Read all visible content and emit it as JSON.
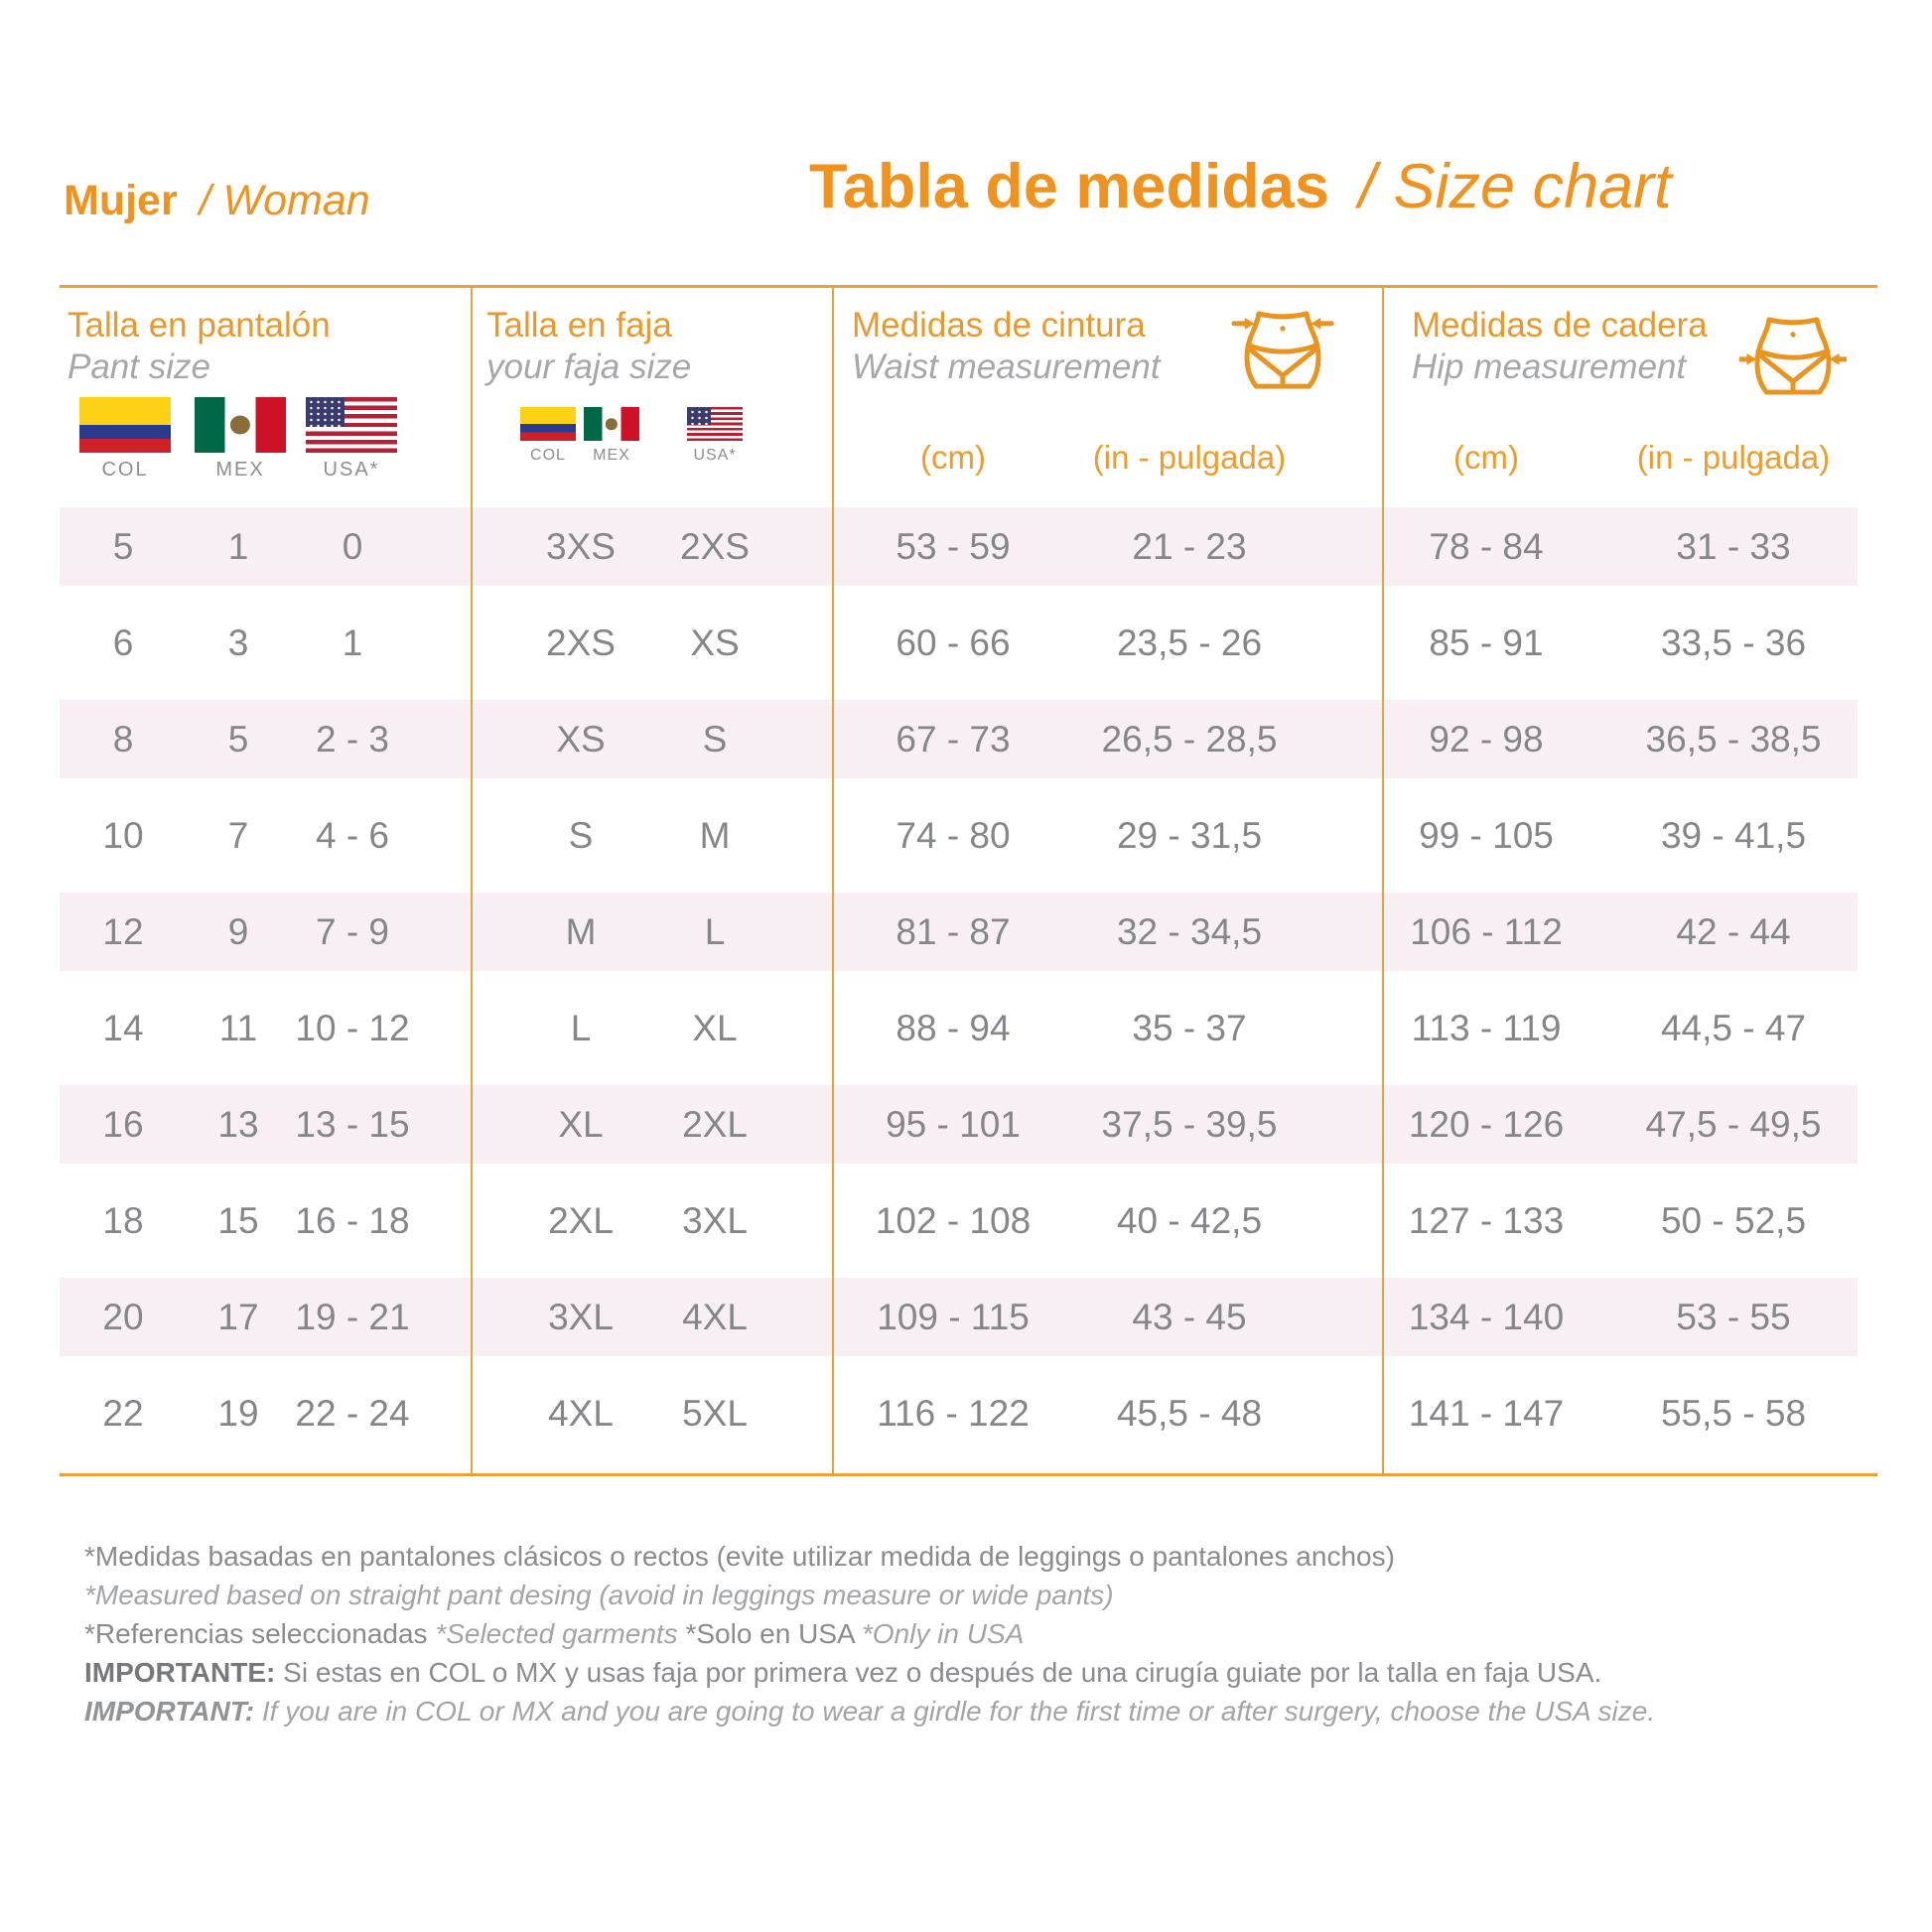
{
  "header": {
    "left_bold": "Mujer",
    "left_italic": "/ Woman",
    "main_bold": "Tabla de medidas",
    "main_italic": "/ Size chart"
  },
  "columns": [
    {
      "title_es": "Talla en pantalón",
      "title_en": "Pant size",
      "flags": [
        "COL",
        "MEX",
        "USA*"
      ]
    },
    {
      "title_es": "Talla en faja",
      "title_en": "your faja size",
      "flags": [
        "COL",
        "MEX",
        "USA*"
      ]
    },
    {
      "title_es": "Medidas de cintura",
      "title_en": "Waist measurement",
      "icon": "waist-icon",
      "units": [
        "(cm)",
        "(in - pulgada)"
      ]
    },
    {
      "title_es": "Medidas de cadera",
      "title_en": "Hip measurement",
      "icon": "hip-icon",
      "units": [
        "(cm)",
        "(in - pulgada)"
      ]
    }
  ],
  "rows": [
    {
      "pant_col": "5",
      "pant_mex": "1",
      "pant_usa": "0",
      "faja_colmex": "3XS",
      "faja_usa": "2XS",
      "waist_cm": "53 - 59",
      "waist_in": "21 - 23",
      "hip_cm": "78 - 84",
      "hip_in": "31 - 33"
    },
    {
      "pant_col": "6",
      "pant_mex": "3",
      "pant_usa": "1",
      "faja_colmex": "2XS",
      "faja_usa": "XS",
      "waist_cm": "60 - 66",
      "waist_in": "23,5 - 26",
      "hip_cm": "85 - 91",
      "hip_in": "33,5 - 36"
    },
    {
      "pant_col": "8",
      "pant_mex": "5",
      "pant_usa": "2 - 3",
      "faja_colmex": "XS",
      "faja_usa": "S",
      "waist_cm": "67 - 73",
      "waist_in": "26,5 - 28,5",
      "hip_cm": "92 - 98",
      "hip_in": "36,5 - 38,5"
    },
    {
      "pant_col": "10",
      "pant_mex": "7",
      "pant_usa": "4 - 6",
      "faja_colmex": "S",
      "faja_usa": "M",
      "waist_cm": "74 - 80",
      "waist_in": "29 - 31,5",
      "hip_cm": "99 - 105",
      "hip_in": "39 - 41,5"
    },
    {
      "pant_col": "12",
      "pant_mex": "9",
      "pant_usa": "7 - 9",
      "faja_colmex": "M",
      "faja_usa": "L",
      "waist_cm": "81 - 87",
      "waist_in": "32 - 34,5",
      "hip_cm": "106 - 112",
      "hip_in": "42 - 44"
    },
    {
      "pant_col": "14",
      "pant_mex": "11",
      "pant_usa": "10 - 12",
      "faja_colmex": "L",
      "faja_usa": "XL",
      "waist_cm": "88 - 94",
      "waist_in": "35 - 37",
      "hip_cm": "113 - 119",
      "hip_in": "44,5 - 47"
    },
    {
      "pant_col": "16",
      "pant_mex": "13",
      "pant_usa": "13 - 15",
      "faja_colmex": "XL",
      "faja_usa": "2XL",
      "waist_cm": "95 - 101",
      "waist_in": "37,5 - 39,5",
      "hip_cm": "120 - 126",
      "hip_in": "47,5 - 49,5"
    },
    {
      "pant_col": "18",
      "pant_mex": "15",
      "pant_usa": "16 - 18",
      "faja_colmex": "2XL",
      "faja_usa": "3XL",
      "waist_cm": "102 - 108",
      "waist_in": "40 - 42,5",
      "hip_cm": "127 - 133",
      "hip_in": "50 - 52,5"
    },
    {
      "pant_col": "20",
      "pant_mex": "17",
      "pant_usa": "19 - 21",
      "faja_colmex": "3XL",
      "faja_usa": "4XL",
      "waist_cm": "109 - 115",
      "waist_in": "43 - 45",
      "hip_cm": "134 - 140",
      "hip_in": "53 - 55"
    },
    {
      "pant_col": "22",
      "pant_mex": "19",
      "pant_usa": "22 - 24",
      "faja_colmex": "4XL",
      "faja_usa": "5XL",
      "waist_cm": "116 - 122",
      "waist_in": "45,5 - 48",
      "hip_cm": "141 - 147",
      "hip_in": "55,5 - 58"
    }
  ],
  "footnotes": {
    "line1": "*Medidas basadas en pantalones clásicos o rectos (evite utilizar medida de leggings o pantalones anchos)",
    "line2": "*Measured based on straight pant desing (avoid in leggings measure or wide pants)",
    "line3_a": "*Referencias seleccionadas ",
    "line3_b": "*Selected garments ",
    "line3_c": "*Solo en USA ",
    "line3_d": "*Only in USA",
    "line4_label": "IMPORTANTE:",
    "line4_text": " Si estas en COL o MX y usas faja por primera vez o después de una cirugía guiate por la talla en faja USA.",
    "line5_label": "IMPORTANT:",
    "line5_text": " If you are in COL or MX and you are going to wear a girdle for the first time or after surgery, choose the USA size."
  },
  "colors": {
    "accent_orange": "#F0921E",
    "header_orange": "#E9992C",
    "unit_orange": "#EF9C2C",
    "divider_amber": "#E2A440",
    "border_orange": "#ECA03A",
    "row_pink": "#F8EFF5",
    "text_gray": "#85868A",
    "subtitle_gray": "#A5A7AA"
  }
}
